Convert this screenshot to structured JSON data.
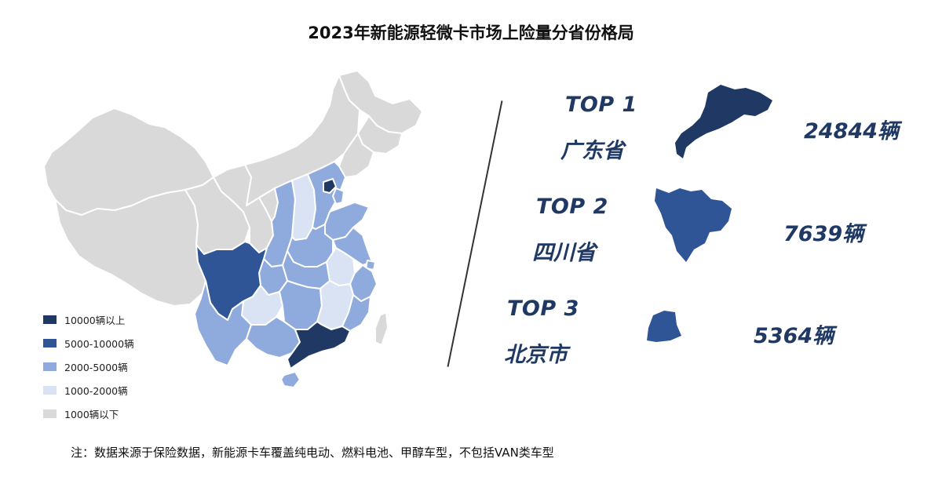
{
  "title": "2023年新能源轻微卡市场上险量分省份格局",
  "legend": [
    {
      "label": "10000辆以上",
      "color": "#1f3864"
    },
    {
      "label": "5000-10000辆",
      "color": "#2f5597"
    },
    {
      "label": "2000-5000辆",
      "color": "#8faadc"
    },
    {
      "label": "1000-2000辆",
      "color": "#dae3f3"
    },
    {
      "label": "1000辆以下",
      "color": "#d9d9d9"
    }
  ],
  "top": [
    {
      "rank": "TOP 1",
      "province": "广东省",
      "value": "24844辆",
      "color": "#1f3864"
    },
    {
      "rank": "TOP 2",
      "province": "四川省",
      "value": "7639辆",
      "color": "#2f5597"
    },
    {
      "rank": "TOP 3",
      "province": "北京市",
      "value": "5364辆",
      "color": "#2f5597"
    }
  ],
  "note": "注：数据来源于保险数据，新能源卡车覆盖纯电动、燃料电池、甲醇车型，不包括VAN类车型",
  "colors": {
    "tier1": "#1f3864",
    "tier2": "#2f5597",
    "tier3": "#8faadc",
    "tier4": "#dae3f3",
    "tier5": "#d9d9d9",
    "border": "#ffffff"
  }
}
